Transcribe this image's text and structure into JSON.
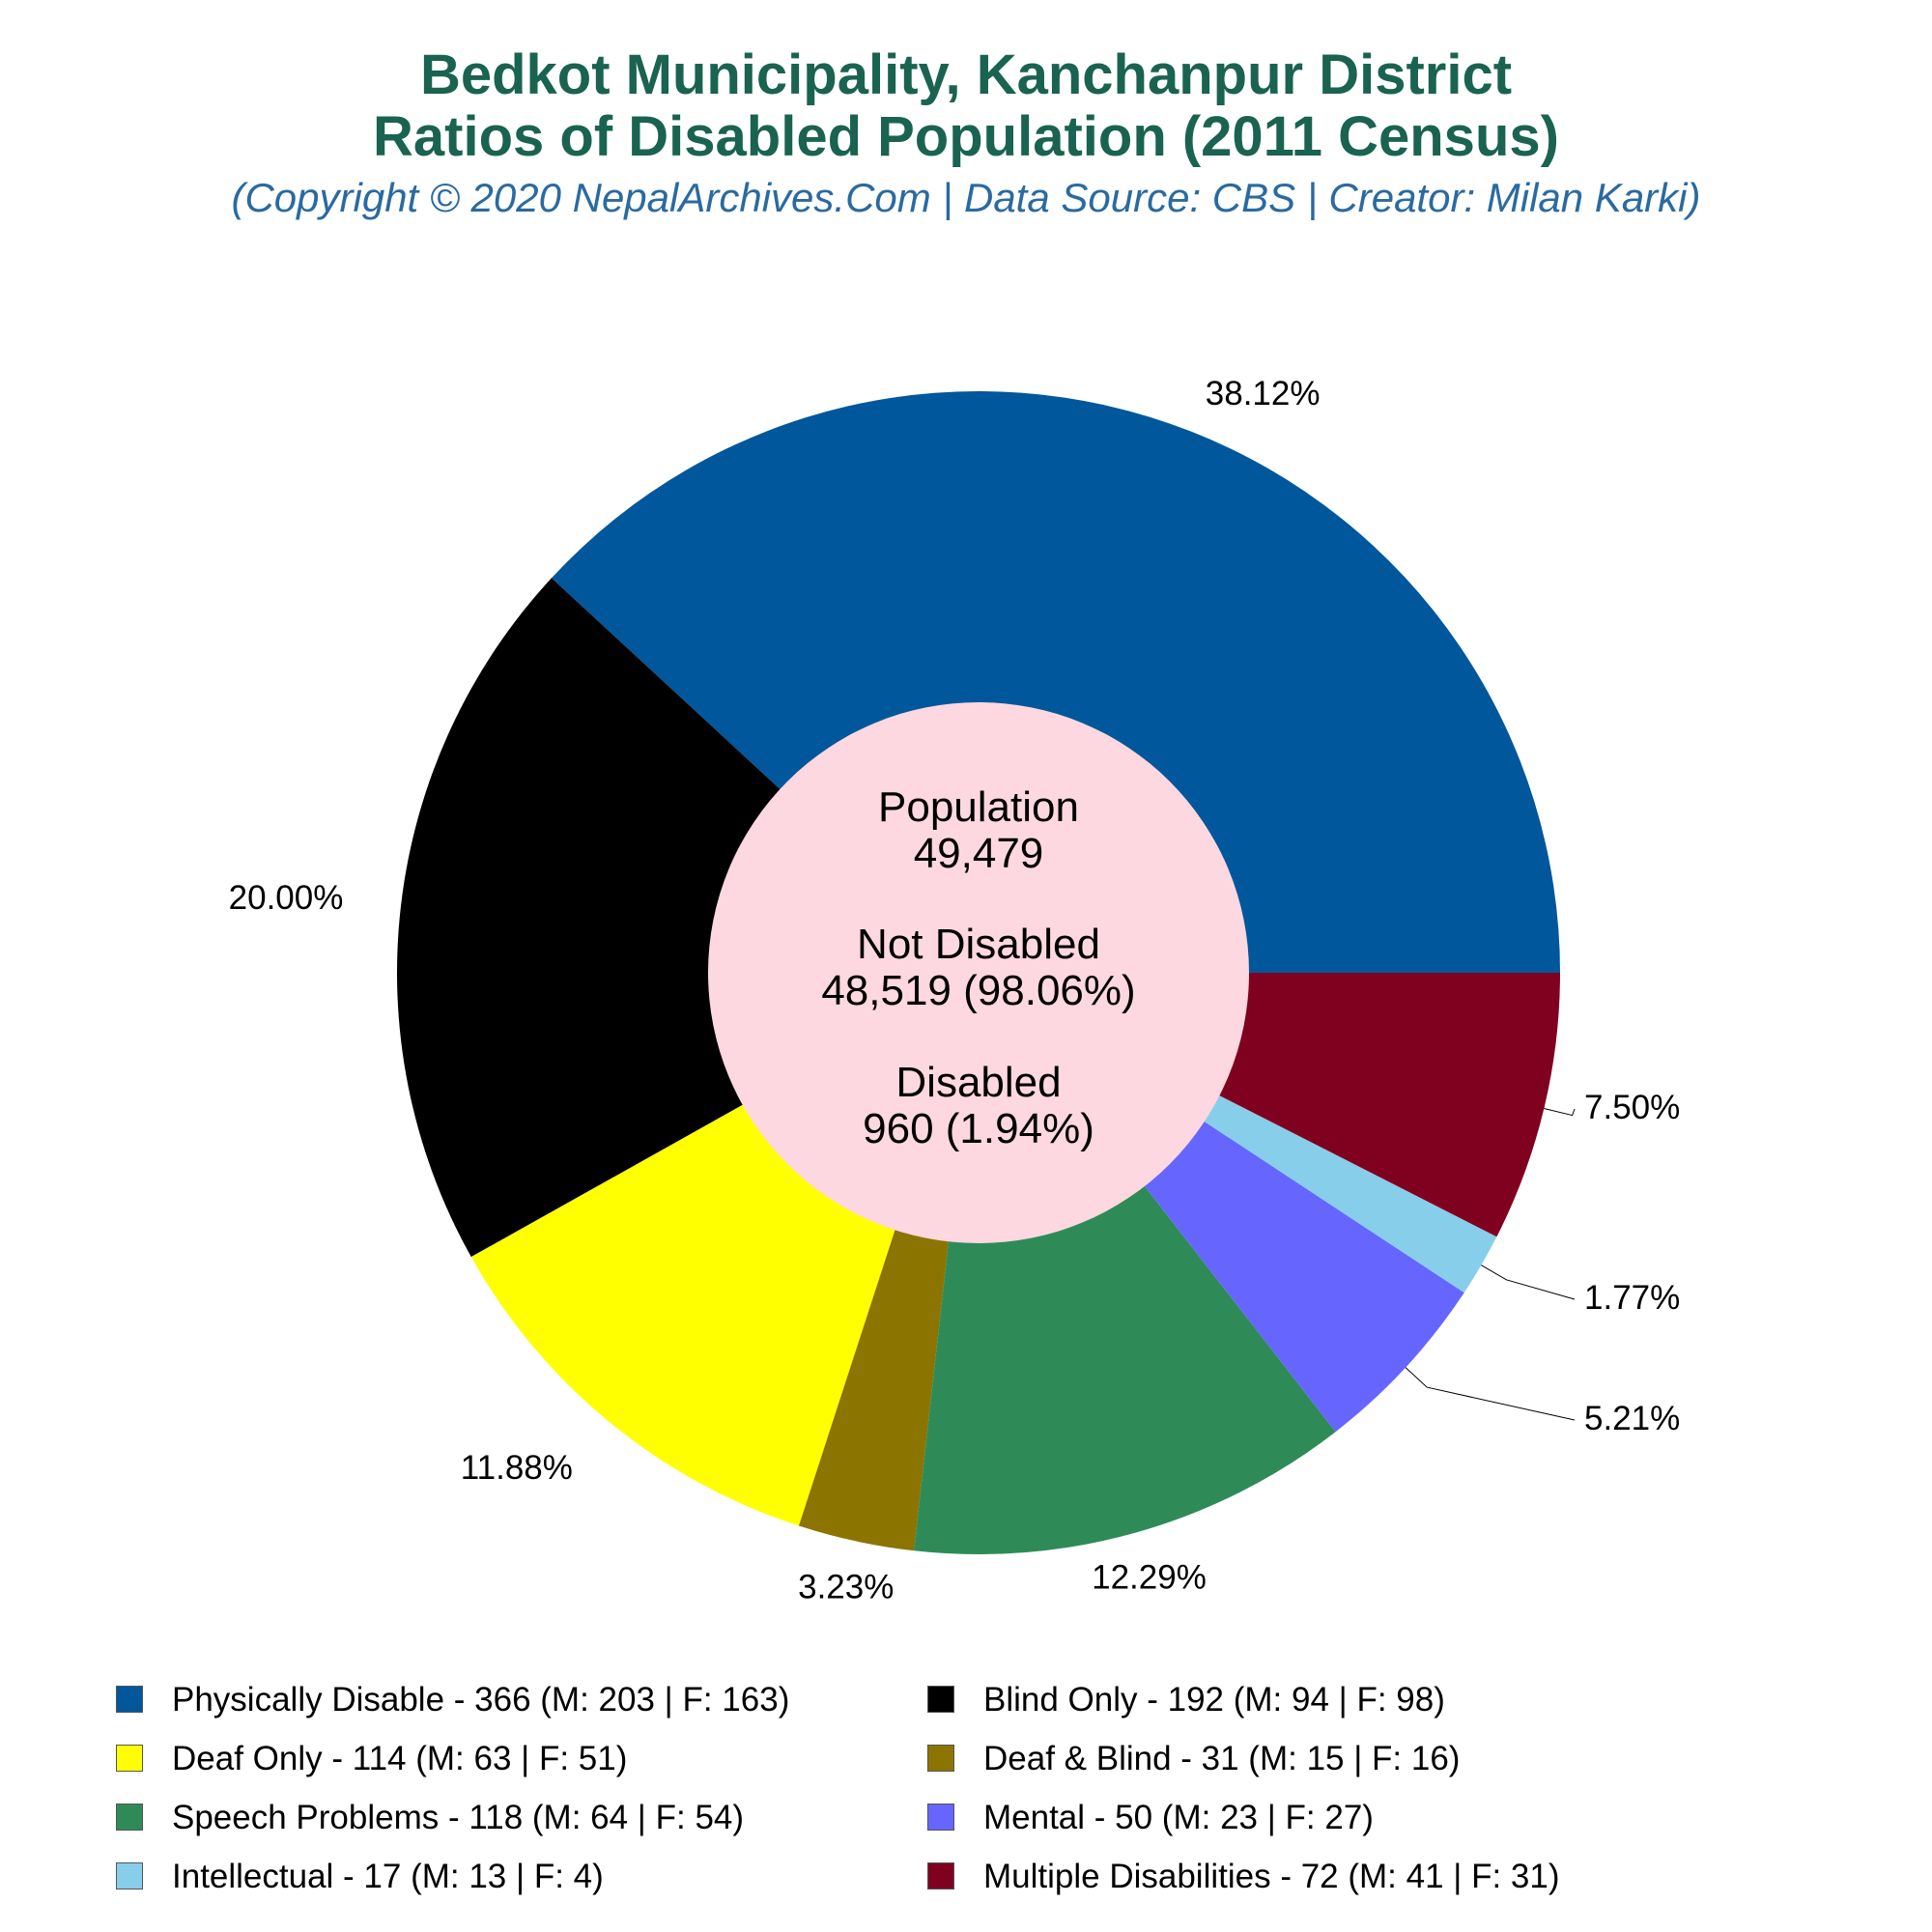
{
  "header": {
    "title_line1": "Bedkot Municipality, Kanchanpur District",
    "title_line2": "Ratios of Disabled Population (2011 Census)",
    "subtitle": "(Copyright © 2020 NepalArchives.Com | Data Source: CBS | Creator: Milan Karki)"
  },
  "center": {
    "population_label": "Population",
    "population_value": "49,479",
    "not_disabled_label": "Not Disabled",
    "not_disabled_value": "48,519 (98.06%)",
    "disabled_label": "Disabled",
    "disabled_value": "960 (1.94%)",
    "fill_color": "#fdd8e0"
  },
  "chart_data": {
    "type": "pie",
    "style": "donut",
    "title": "Bedkot Municipality, Kanchanpur District / Ratios of Disabled Population (2011 Census)",
    "legend_placement": "bottom",
    "slices": [
      {
        "name": "Physically Disable",
        "value": 366,
        "male": 203,
        "female": 163,
        "percent_label": "38.12%",
        "color": "#01579b",
        "legend": "Physically Disable - 366 (M: 203 | F: 163)"
      },
      {
        "name": "Blind Only",
        "value": 192,
        "male": 94,
        "female": 98,
        "percent_label": "20.00%",
        "color": "#000000",
        "legend": "Blind Only - 192 (M: 94 | F: 98)"
      },
      {
        "name": "Deaf Only",
        "value": 114,
        "male": 63,
        "female": 51,
        "percent_label": "11.88%",
        "color": "#ffff00",
        "legend": "Deaf Only - 114 (M: 63 | F: 51)"
      },
      {
        "name": "Deaf & Blind",
        "value": 31,
        "male": 15,
        "female": 16,
        "percent_label": "3.23%",
        "color": "#8b7500",
        "legend": "Deaf & Blind - 31 (M: 15 | F: 16)"
      },
      {
        "name": "Speech Problems",
        "value": 118,
        "male": 64,
        "female": 54,
        "percent_label": "12.29%",
        "color": "#2e8b57",
        "legend": "Speech Problems - 118 (M: 64 | F: 54)"
      },
      {
        "name": "Mental",
        "value": 50,
        "male": 23,
        "female": 27,
        "percent_label": "5.21%",
        "color": "#6666ff",
        "legend": "Mental - 50 (M: 23 | F: 27)"
      },
      {
        "name": "Intellectual",
        "value": 17,
        "male": 13,
        "female": 4,
        "percent_label": "1.77%",
        "color": "#87ceeb",
        "legend": "Intellectual - 17 (M: 13 | F: 4)"
      },
      {
        "name": "Multiple Disabilities",
        "value": 72,
        "male": 41,
        "female": 31,
        "percent_label": "7.50%",
        "color": "#800020",
        "legend": "Multiple Disabilities - 72 (M: 41 | F: 31)"
      }
    ]
  }
}
